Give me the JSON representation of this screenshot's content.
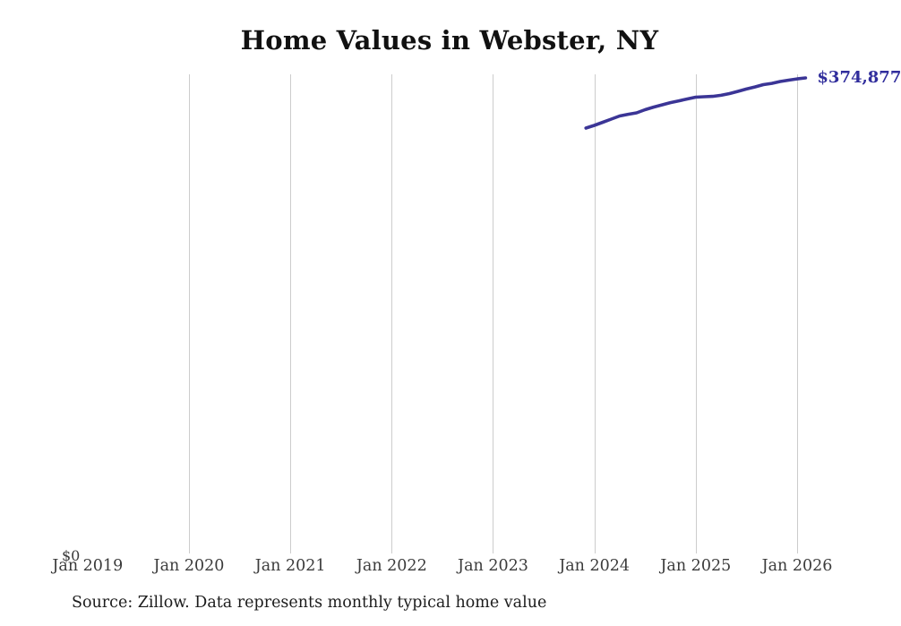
{
  "chart": {
    "title": "Home Values in Webster, NY",
    "source_note": "Source: Zillow. Data represents monthly typical home value",
    "end_label": "$374,877",
    "zero_label": "$0",
    "colors": {
      "line": "#3b3596",
      "annotation": "#302d9c",
      "gridline": "#cccccc",
      "title": "#111111",
      "axis_label": "#3b3b3b",
      "source": "#1c1c1c",
      "background": "#ffffff"
    }
  },
  "chart_data": {
    "type": "line",
    "title": "Home Values in Webster, NY",
    "xlabel": "",
    "ylabel": "",
    "legend_position": "none",
    "grid": "vertical-only",
    "y_axis": {
      "min": 0,
      "min_label": "$0",
      "max_estimate": 378000,
      "labels_shown": [
        "$0"
      ]
    },
    "x_ticks": [
      {
        "label": "Jan 2019",
        "month": "2019-01",
        "gridline": false
      },
      {
        "label": "Jan 2020",
        "month": "2020-01",
        "gridline": true
      },
      {
        "label": "Jan 2021",
        "month": "2021-01",
        "gridline": true
      },
      {
        "label": "Jan 2022",
        "month": "2022-01",
        "gridline": true
      },
      {
        "label": "Jan 2023",
        "month": "2023-01",
        "gridline": true
      },
      {
        "label": "Jan 2024",
        "month": "2024-01",
        "gridline": true
      },
      {
        "label": "Jan 2025",
        "month": "2025-01",
        "gridline": true
      },
      {
        "label": "Jan 2026",
        "month": "2026-01",
        "gridline": true
      }
    ],
    "series": [
      {
        "name": "Monthly typical home value",
        "color": "#3b3596",
        "points": [
          [
            "2023-12",
            334900
          ],
          [
            "2024-01",
            337000
          ],
          [
            "2024-02",
            339500
          ],
          [
            "2024-03",
            342000
          ],
          [
            "2024-04",
            344500
          ],
          [
            "2024-05",
            345900
          ],
          [
            "2024-06",
            347000
          ],
          [
            "2024-07",
            349500
          ],
          [
            "2024-08",
            351600
          ],
          [
            "2024-09",
            353400
          ],
          [
            "2024-10",
            355200
          ],
          [
            "2024-11",
            356600
          ],
          [
            "2024-12",
            358100
          ],
          [
            "2025-01",
            359500
          ],
          [
            "2025-02",
            359900
          ],
          [
            "2025-03",
            360200
          ],
          [
            "2025-04",
            361000
          ],
          [
            "2025-05",
            362400
          ],
          [
            "2025-06",
            364200
          ],
          [
            "2025-07",
            366000
          ],
          [
            "2025-08",
            367700
          ],
          [
            "2025-09",
            369500
          ],
          [
            "2025-10",
            370500
          ],
          [
            "2025-11",
            372000
          ],
          [
            "2025-12",
            373100
          ],
          [
            "2026-01",
            374100
          ],
          [
            "2026-02",
            374877
          ]
        ]
      }
    ],
    "annotation": {
      "text": "$374,877",
      "at": "2026-02",
      "note": "label clipped at right edge of image"
    }
  }
}
